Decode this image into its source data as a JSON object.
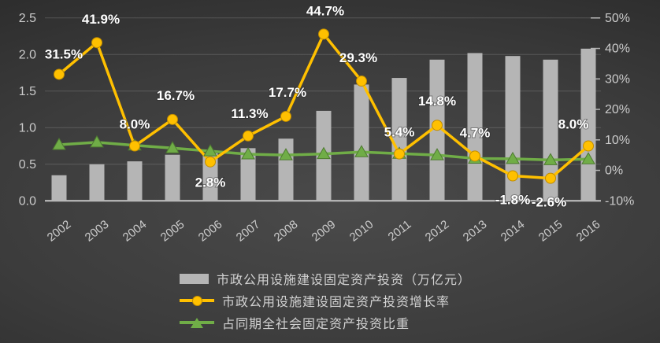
{
  "chart_data": {
    "type": "combo",
    "title": "",
    "grid": true,
    "legend_position": "bottom",
    "categories": [
      "2002",
      "2003",
      "2004",
      "2005",
      "2006",
      "2007",
      "2008",
      "2009",
      "2010",
      "2011",
      "2012",
      "2013",
      "2014",
      "2015",
      "2016"
    ],
    "left_axis": {
      "ticks": [
        "0.0",
        "0.5",
        "1.0",
        "1.5",
        "2.0",
        "2.5"
      ],
      "min": 0,
      "max": 2.5
    },
    "right_axis": {
      "ticks": [
        "-10%",
        "0%",
        "10%",
        "20%",
        "30%",
        "40%",
        "50%"
      ],
      "min": -10,
      "max": 50
    },
    "series": [
      {
        "name": "市政公用设施建设固定资产投资（万亿元）",
        "type": "bar",
        "axis": "left",
        "color": "#b5b5b5",
        "values": [
          0.35,
          0.5,
          0.54,
          0.63,
          0.65,
          0.72,
          0.85,
          1.23,
          1.59,
          1.68,
          1.93,
          2.02,
          1.98,
          1.93,
          2.08
        ]
      },
      {
        "name": "市政公用设施建设固定资产投资增长率",
        "type": "line",
        "marker": "circle",
        "axis": "right",
        "color": "#ffc000",
        "marker_stroke": "#c08c00",
        "values": [
          31.5,
          41.9,
          8.0,
          16.7,
          2.8,
          11.3,
          17.7,
          44.7,
          29.3,
          5.4,
          14.8,
          4.7,
          -1.8,
          -2.6,
          8.0
        ],
        "labels": [
          "31.5%",
          "41.9%",
          "8.0%",
          "16.7%",
          "2.8%",
          "11.3%",
          "17.7%",
          "44.7%",
          "29.3%",
          "5.4%",
          "14.8%",
          "4.7%",
          "-1.8%",
          "-2.6%",
          "8.0%"
        ],
        "label_dx": [
          6,
          5,
          0,
          4,
          0,
          2,
          2,
          2,
          -4,
          0,
          0,
          0,
          0,
          -2,
          -19
        ],
        "label_dy": [
          -26,
          -30,
          -28,
          -31,
          26,
          -29,
          -31,
          -30,
          -30,
          -28,
          -31,
          -30,
          30,
          30,
          -28
        ]
      },
      {
        "name": "占同期全社会固定资产投资比重",
        "type": "line",
        "marker": "triangle",
        "axis": "right",
        "color": "#70ad47",
        "marker_stroke": "#4e7a31",
        "values": [
          8.4,
          9.2,
          8.2,
          7.3,
          6.3,
          5.3,
          5.0,
          5.4,
          6.0,
          5.5,
          5.0,
          3.9,
          3.8,
          3.4,
          3.7
        ]
      }
    ]
  },
  "legend": {
    "items": [
      {
        "label": "市政公用设施建设固定资产投资（万亿元）",
        "swatch": "bar",
        "color": "#b5b5b5"
      },
      {
        "label": "市政公用设施建设固定资产投资增长率",
        "swatch": "line-circle",
        "color": "#ffc000"
      },
      {
        "label": "占同期全社会固定资产投资比重",
        "swatch": "line-triangle",
        "color": "#70ad47"
      }
    ]
  },
  "colors": {
    "background_center": "#4a4a4a",
    "background_edge": "#222222",
    "bar": "#b5b5b5",
    "growth_line": "#ffc000",
    "share_line": "#70ad47",
    "axis_text": "#cbcbcb",
    "data_label": "#ffffff",
    "gridline": "rgba(255,255,255,0.16)"
  }
}
